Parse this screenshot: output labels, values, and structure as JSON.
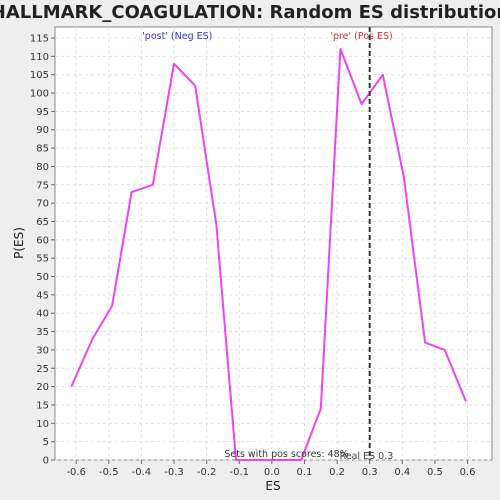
{
  "chart_data": {
    "type": "line",
    "title": "HALLMARK_COAGULATION: Random ES distribution",
    "xlabel": "ES",
    "ylabel": "P(ES)",
    "xlim": [
      -0.665,
      0.675
    ],
    "ylim": [
      0,
      118
    ],
    "x_ticks": [
      -0.6,
      -0.5,
      -0.4,
      -0.3,
      -0.2,
      -0.1,
      0.0,
      0.1,
      0.2,
      0.3,
      0.4,
      0.5,
      0.6
    ],
    "x_tick_labels": [
      "-0.6",
      "-0.5",
      "-0.4",
      "-0.3",
      "-0.2",
      "-0.1",
      "0.0",
      "0.1",
      "0.2",
      "0.3",
      "0.4",
      "0.5",
      "0.6"
    ],
    "y_ticks": [
      0,
      5,
      10,
      15,
      20,
      25,
      30,
      35,
      40,
      45,
      50,
      55,
      60,
      65,
      70,
      75,
      80,
      85,
      90,
      95,
      100,
      105,
      110,
      115
    ],
    "y_tick_labels": [
      "0",
      "5",
      "10",
      "15",
      "20",
      "25",
      "30",
      "35",
      "40",
      "45",
      "50",
      "55",
      "60",
      "65",
      "70",
      "75",
      "80",
      "85",
      "90",
      "95",
      "100",
      "105",
      "110",
      "115"
    ],
    "grid": true,
    "series": [
      {
        "color": "#ee44ee",
        "x": [
          -0.615,
          -0.55,
          -0.49,
          -0.43,
          -0.365,
          -0.3,
          -0.235,
          -0.17,
          -0.11,
          -0.045,
          0.02,
          0.09,
          0.15,
          0.21,
          0.275,
          0.34,
          0.405,
          0.47,
          0.53,
          0.595
        ],
        "y": [
          20,
          33,
          42,
          73,
          75,
          108,
          102,
          64,
          0,
          0,
          0,
          0,
          14,
          112,
          97,
          105,
          77,
          32,
          30,
          16
        ]
      }
    ],
    "real_es": 0.3,
    "annotations": {
      "neg_label": "'post' (Neg ES)",
      "neg_color": "#3333cc",
      "pos_label": "'pre' (Pos ES)",
      "pos_color": "#cc3333",
      "pos_scores": "Sets with pos scores: 48%",
      "real_es_label": "Real ES 0.3"
    }
  }
}
